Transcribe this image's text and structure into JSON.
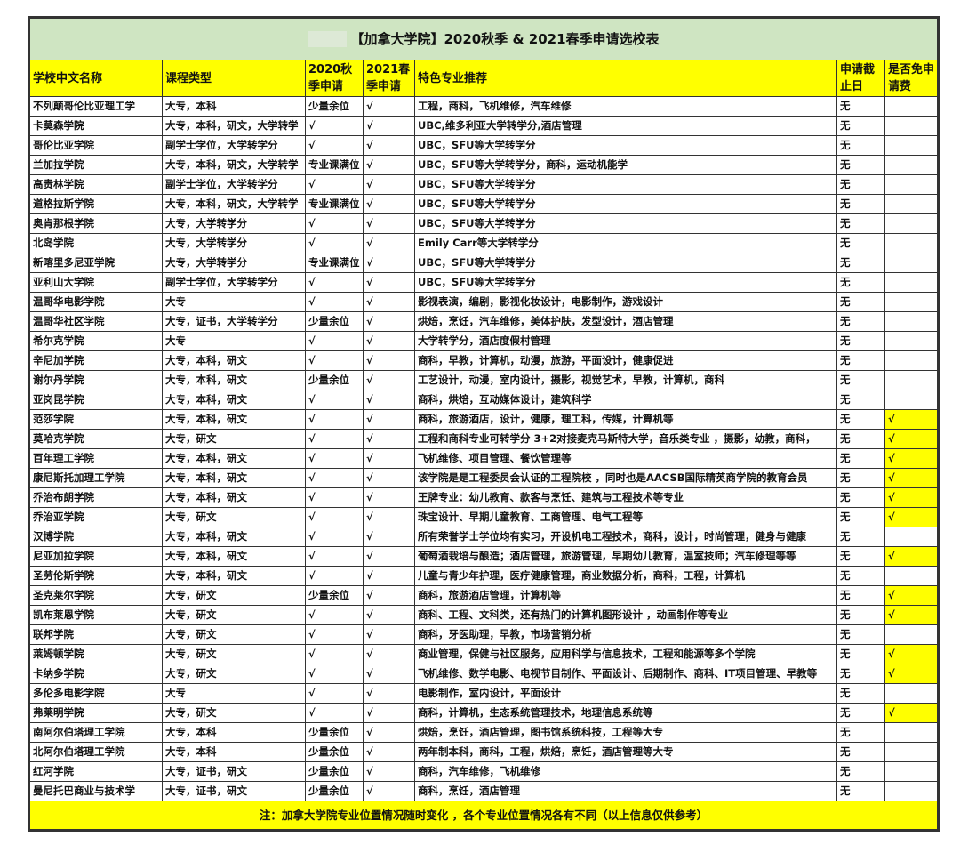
{
  "title": "【加拿大学院】2020秋季 & 2021春季申请选校表",
  "colors": {
    "title_bg": "#cfe5c2",
    "header_bg": "#ffff00",
    "fee_waiver_highlight": "#ffff00"
  },
  "headers": [
    "学校中文名称",
    "课程类型",
    "2020秋季申请",
    "2021春季申请",
    "特色专业推荐",
    "申请截止日",
    "是否免申请费"
  ],
  "rows": [
    [
      "不列颠哥伦比亚理工学",
      "大专，本科",
      "少量余位",
      "√",
      "工程，商科，飞机维修，汽车维修",
      "无",
      ""
    ],
    [
      "卡莫森学院",
      "大专，本科，研文，大学转学",
      "√",
      "√",
      "UBC,维多利亚大学转学分,酒店管理",
      "无",
      ""
    ],
    [
      "哥伦比亚学院",
      "副学士学位，大学转学分",
      "√",
      "√",
      "UBC，SFU等大学转学分",
      "无",
      ""
    ],
    [
      "兰加拉学院",
      "大专，本科，研文，大学转学",
      "专业课满位",
      "√",
      "UBC，SFU等大学转学分，商科，运动机能学",
      "无",
      ""
    ],
    [
      "高贵林学院",
      "副学士学位，大学转学分",
      "√",
      "√",
      "UBC，SFU等大学转学分",
      "无",
      ""
    ],
    [
      "道格拉斯学院",
      "大专，本科，研文，大学转学",
      "专业课满位",
      "√",
      "UBC，SFU等大学转学分",
      "无",
      ""
    ],
    [
      "奥肯那根学院",
      "大专，大学转学分",
      "√",
      "√",
      "UBC，SFU等大学转学分",
      "无",
      ""
    ],
    [
      "北岛学院",
      "大专，大学转学分",
      "√",
      "√",
      "Emily Carr等大学转学分",
      "无",
      ""
    ],
    [
      "新喀里多尼亚学院",
      "大专，大学转学分",
      "专业课满位",
      "√",
      "UBC，SFU等大学转学分",
      "无",
      ""
    ],
    [
      "亚利山大学院",
      "副学士学位，大学转学分",
      "√",
      "√",
      "UBC，SFU等大学转学分",
      "无",
      ""
    ],
    [
      "温哥华电影学院",
      "大专",
      "√",
      "√",
      "影视表演，编剧，影视化妆设计，电影制作，游戏设计",
      "无",
      ""
    ],
    [
      "温哥华社区学院",
      "大专，证书，大学转学分",
      "少量余位",
      "√",
      "烘焙，烹饪，汽车维修，美体护肤，发型设计，酒店管理",
      "无",
      ""
    ],
    [
      "希尔克学院",
      "大专",
      "√",
      "√",
      "大学转学分，酒店度假村管理",
      "无",
      ""
    ],
    [
      "辛尼加学院",
      "大专，本科，研文",
      "√",
      "√",
      "商科，早教，计算机，动漫，旅游，平面设计，健康促进",
      "无",
      ""
    ],
    [
      "谢尔丹学院",
      "大专，本科，研文",
      "少量余位",
      "√",
      "工艺设计，动漫，室内设计，摄影，视觉艺术，早教，计算机，商科",
      "无",
      ""
    ],
    [
      "亚岗昆学院",
      "大专，本科，研文",
      "√",
      "√",
      "商科，烘焙，互动媒体设计，建筑科学",
      "无",
      ""
    ],
    [
      "范莎学院",
      "大专，本科，研文",
      "√",
      "√",
      "商科，旅游酒店，设计，健康，理工科，传媒，计算机等",
      "无",
      "√"
    ],
    [
      "莫哈克学院",
      "大专，研文",
      "√",
      "√",
      "工程和商科专业可转学分 3+2对接麦克马斯特大学，音乐类专业 ，摄影，幼教，商科，",
      "无",
      "√"
    ],
    [
      "百年理工学院",
      "大专，本科，研文",
      "√",
      "√",
      "飞机维修、项目管理、餐饮管理等",
      "无",
      "√"
    ],
    [
      "康尼斯托加理工学院",
      "大专，本科，研文",
      "√",
      "√",
      "该学院是是工程委员会认证的工程院校 ，同时也是AACSB国际精英商学院的教育会员",
      "无",
      "√"
    ],
    [
      "乔治布朗学院",
      "大专，本科，研文",
      "√",
      "√",
      "王牌专业：幼儿教育、款客与烹饪、建筑与工程技术等专业",
      "无",
      "√"
    ],
    [
      "乔治亚学院",
      "大专，研文",
      "√",
      "√",
      "珠宝设计、早期儿童教育、工商管理、电气工程等",
      "无",
      "√"
    ],
    [
      "汉博学院",
      "大专，本科，研文",
      "√",
      "√",
      "所有荣誉学士学位均有实习，开设机电工程技术，商科，设计，时尚管理，健身与健康",
      "无",
      ""
    ],
    [
      "尼亚加拉学院",
      "大专，本科，研文",
      "√",
      "√",
      "葡萄酒栽培与酿造；酒店管理，旅游管理，早期幼儿教育，温室技师；汽车修理等等",
      "无",
      "√"
    ],
    [
      "圣劳伦斯学院",
      "大专，本科，研文",
      "√",
      "√",
      "儿童与青少年护理，医疗健康管理，商业数据分析，商科，工程，计算机",
      "无",
      ""
    ],
    [
      "圣克莱尔学院",
      "大专，研文",
      "少量余位",
      "√",
      "商科，旅游酒店管理，计算机等",
      "无",
      "√"
    ],
    [
      "凯布莱恩学院",
      "大专，研文",
      "√",
      "√",
      "商科、工程、文科类，还有热门的计算机图形设计 ，动画制作等专业",
      "无",
      "√"
    ],
    [
      "联邦学院",
      "大专，研文",
      "√",
      "√",
      "商科，牙医助理，早教，市场营销分析",
      "无",
      ""
    ],
    [
      "莱姆顿学院",
      "大专，研文",
      "√",
      "√",
      "商业管理，保健与社区服务，应用科学与信息技术，工程和能源等多个学院",
      "无",
      "√"
    ],
    [
      "卡纳多学院",
      "大专，研文",
      "√",
      "√",
      "飞机维修、数学电影、电视节目制作、平面设计、后期制作、商科、IT项目管理、早教等",
      "无",
      "√"
    ],
    [
      "多伦多电影学院",
      "大专",
      "√",
      "√",
      "电影制作，室内设计，平面设计",
      "无",
      ""
    ],
    [
      "弗莱明学院",
      "大专，研文",
      "√",
      "√",
      "商科，计算机，生态系统管理技术，地理信息系统等",
      "无",
      "√"
    ],
    [
      "南阿尔伯塔理工学院",
      "大专，本科",
      "少量余位",
      "√",
      "烘焙，烹饪，酒店管理，图书馆系统科技，工程等大专",
      "无",
      ""
    ],
    [
      "北阿尔伯塔理工学院",
      "大专，本科",
      "少量余位",
      "√",
      "两年制本科，商科，工程，烘焙，烹饪，酒店管理等大专",
      "无",
      ""
    ],
    [
      "红河学院",
      "大专，证书，研文",
      "少量余位",
      "√",
      "商科，汽车维修，飞机维修",
      "无",
      ""
    ],
    [
      "曼尼托巴商业与技术学",
      "大专，证书，研文",
      "少量余位",
      "√",
      "商科，烹饪，酒店管理",
      "无",
      ""
    ]
  ],
  "footer": "注：加拿大学院专业位置情况随时变化 ，各个专业位置情况各有不同（以上信息仅供参考）"
}
